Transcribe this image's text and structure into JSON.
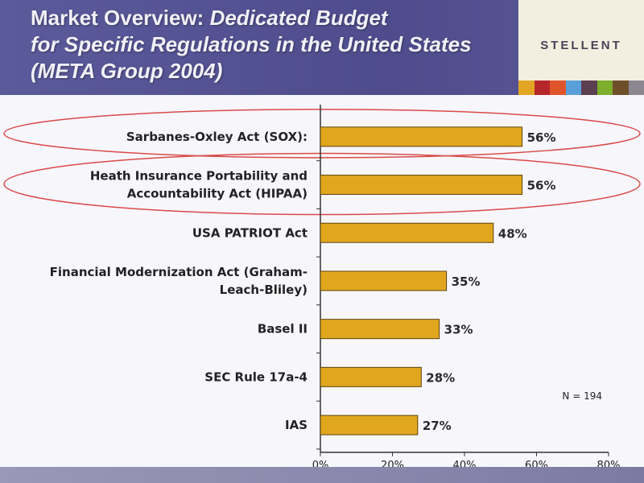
{
  "header": {
    "title_prefix": "Market Overview: ",
    "title_italic_1": "Dedicated Budget",
    "title_italic_2": "for Specific Regulations in the United States",
    "title_italic_3": "(META Group 2004)",
    "logo_text": "STELLENT",
    "swatch_colors": [
      "#e2a524",
      "#b6272c",
      "#e0542b",
      "#5aa0d8",
      "#5c3f50",
      "#7dae2c",
      "#6d4f2a",
      "#8a8790"
    ]
  },
  "chart_data": {
    "type": "bar",
    "orientation": "horizontal",
    "categories": [
      [
        "Sarbanes-Oxley Act (SOX):"
      ],
      [
        "Heath Insurance Portability and",
        "Accountability Act (HIPAA)"
      ],
      [
        "USA PATRIOT Act"
      ],
      [
        "Financial Modernization Act (Graham-",
        "Leach-Bliley)"
      ],
      [
        "Basel II"
      ],
      [
        "SEC Rule 17a-4"
      ],
      [
        "IAS"
      ]
    ],
    "values": [
      56,
      56,
      48,
      35,
      33,
      28,
      27
    ],
    "value_labels": [
      "56%",
      "56%",
      "48%",
      "35%",
      "33%",
      "28%",
      "27%"
    ],
    "highlighted": [
      0,
      1
    ],
    "xlim": [
      0,
      80
    ],
    "xticks": [
      0,
      20,
      40,
      60,
      80
    ],
    "xtick_labels": [
      "0%",
      "20%",
      "40%",
      "60%",
      "80%"
    ],
    "annotation": "N = 194",
    "bar_color": "#e0a71e",
    "highlight_color": "#d94a4a",
    "grid": false
  }
}
